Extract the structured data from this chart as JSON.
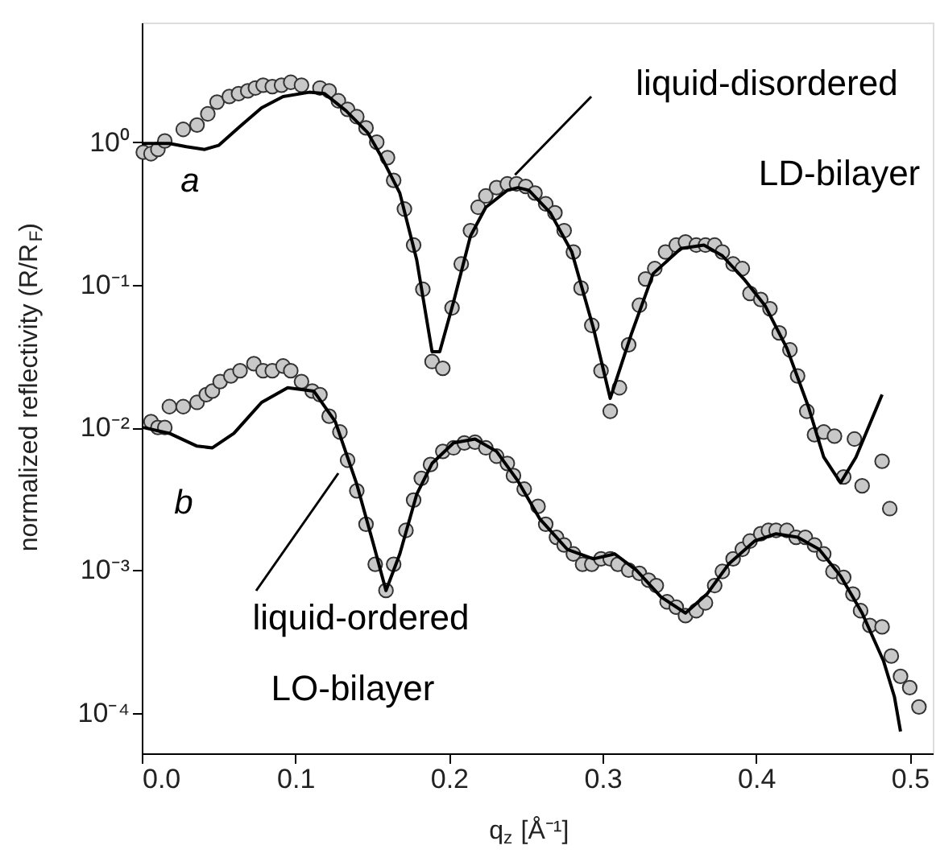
{
  "chart_data": {
    "type": "scatter",
    "xlabel": "q$_{z}$ [Å⁻¹]",
    "ylabel": "normalized reflectivity (R/R$_{F}$)",
    "log": "y",
    "grid": false,
    "marker": "circle",
    "xlim": [
      0,
      0.515
    ],
    "xticks": [
      {
        "value": 0,
        "label": "0.0"
      },
      {
        "value": 0.1,
        "label": "0.1"
      },
      {
        "value": 0.2,
        "label": "0.2"
      },
      {
        "value": 0.3,
        "label": "0.3"
      },
      {
        "value": 0.4,
        "label": "0.4"
      },
      {
        "value": 0.5,
        "label": "0.5"
      }
    ],
    "ylim": [
      5.2e-05,
      6.9
    ],
    "yticks": [
      {
        "value": 0.0001,
        "label": "10⁻⁴"
      },
      {
        "value": 0.001,
        "label": "10⁻³"
      },
      {
        "value": 0.01,
        "label": "10⁻²"
      },
      {
        "value": 0.1,
        "label": "10⁻¹"
      },
      {
        "value": 1,
        "label": "10⁰"
      }
    ],
    "annotations": [
      {
        "text": "liquid-disordered",
        "x": 0.243,
        "y": 0.59
      },
      "LD-bilayer",
      "a",
      "b",
      "liquid-ordered",
      "LO-bilayer"
    ],
    "series": [
      {
        "color": "#c8c8c8",
        "x": [
          0.001,
          0.006,
          0.0105,
          0.015,
          0.027,
          0.036,
          0.043,
          0.049,
          0.057,
          0.063,
          0.069,
          0.074,
          0.079,
          0.085,
          0.091,
          0.097,
          0.104,
          0.116,
          0.122,
          0.128,
          0.134,
          0.14,
          0.146,
          0.153,
          0.16,
          0.164,
          0.171,
          0.177,
          0.183,
          0.189,
          0.196,
          0.202,
          0.208,
          0.214,
          0.219,
          0.224,
          0.231,
          0.238,
          0.244,
          0.25,
          0.256,
          0.263,
          0.269,
          0.275,
          0.281,
          0.286,
          0.293,
          0.299,
          0.305,
          0.311,
          0.317,
          0.324,
          0.328,
          0.334,
          0.341,
          0.348,
          0.354,
          0.361,
          0.367,
          0.373,
          0.378,
          0.385,
          0.391,
          0.396,
          0.403,
          0.409,
          0.415,
          0.422,
          0.427,
          0.433,
          0.438,
          0.444,
          0.451,
          0.457,
          0.464,
          0.469,
          0.482,
          0.487
        ],
        "values": [
          0.85,
          0.83,
          0.89,
          1.02,
          1.23,
          1.32,
          1.58,
          1.91,
          2.09,
          2.19,
          2.29,
          2.4,
          2.51,
          2.45,
          2.51,
          2.63,
          2.51,
          2.4,
          2.29,
          1.95,
          1.7,
          1.51,
          1.26,
          1.0,
          0.78,
          0.54,
          0.34,
          0.19,
          0.093,
          0.029,
          0.026,
          0.069,
          0.14,
          0.24,
          0.35,
          0.42,
          0.48,
          0.51,
          0.51,
          0.49,
          0.44,
          0.37,
          0.32,
          0.24,
          0.17,
          0.095,
          0.052,
          0.025,
          0.013,
          0.019,
          0.038,
          0.072,
          0.11,
          0.13,
          0.17,
          0.19,
          0.2,
          0.19,
          0.19,
          0.19,
          0.17,
          0.14,
          0.13,
          0.087,
          0.079,
          0.068,
          0.046,
          0.035,
          0.023,
          0.013,
          0.0089,
          0.0093,
          0.0087,
          0.0045,
          0.0083,
          0.0039,
          0.0058,
          0.0027
        ]
      },
      {
        "type": "line",
        "marker": "none",
        "line_style": "solid",
        "color": "#000000",
        "x": [
          0,
          0.018,
          0.029,
          0.041,
          0.05,
          0.064,
          0.078,
          0.092,
          0.109,
          0.119,
          0.133,
          0.147,
          0.156,
          0.168,
          0.179,
          0.189,
          0.194,
          0.203,
          0.214,
          0.224,
          0.238,
          0.245,
          0.252,
          0.266,
          0.28,
          0.294,
          0.305,
          0.319,
          0.333,
          0.351,
          0.366,
          0.378,
          0.392,
          0.406,
          0.42,
          0.434,
          0.444,
          0.455,
          0.465,
          0.482
        ],
        "values": [
          0.98,
          0.98,
          0.93,
          0.89,
          0.95,
          1.29,
          1.74,
          2.09,
          2.24,
          2.19,
          1.66,
          1.17,
          0.79,
          0.44,
          0.15,
          0.034,
          0.034,
          0.076,
          0.22,
          0.35,
          0.46,
          0.48,
          0.46,
          0.32,
          0.17,
          0.05,
          0.016,
          0.046,
          0.12,
          0.18,
          0.19,
          0.16,
          0.11,
          0.071,
          0.036,
          0.014,
          0.0062,
          0.0041,
          0.0062,
          0.017
        ]
      },
      {
        "color": "#c8c8c8",
        "x": [
          0.006,
          0.0105,
          0.015,
          0.018,
          0.027,
          0.036,
          0.042,
          0.046,
          0.051,
          0.058,
          0.064,
          0.073,
          0.079,
          0.085,
          0.092,
          0.097,
          0.104,
          0.111,
          0.116,
          0.122,
          0.129,
          0.134,
          0.14,
          0.146,
          0.152,
          0.159,
          0.164,
          0.172,
          0.177,
          0.182,
          0.188,
          0.196,
          0.203,
          0.21,
          0.217,
          0.224,
          0.231,
          0.238,
          0.242,
          0.249,
          0.258,
          0.263,
          0.27,
          0.275,
          0.281,
          0.287,
          0.293,
          0.299,
          0.305,
          0.31,
          0.317,
          0.324,
          0.33,
          0.335,
          0.342,
          0.348,
          0.354,
          0.361,
          0.367,
          0.373,
          0.378,
          0.385,
          0.391,
          0.396,
          0.403,
          0.408,
          0.413,
          0.42,
          0.426,
          0.432,
          0.438,
          0.444,
          0.45,
          0.457,
          0.463,
          0.468,
          0.474,
          0.482,
          0.488,
          0.494,
          0.5,
          0.506
        ],
        "values": [
          0.011,
          0.01,
          0.01,
          0.014,
          0.014,
          0.015,
          0.017,
          0.018,
          0.021,
          0.023,
          0.025,
          0.028,
          0.025,
          0.025,
          0.027,
          0.025,
          0.021,
          0.018,
          0.017,
          0.012,
          0.0093,
          0.0059,
          0.0036,
          0.0021,
          0.0011,
          0.00072,
          0.0011,
          0.0019,
          0.0031,
          0.0044,
          0.0055,
          0.0068,
          0.0072,
          0.0078,
          0.0079,
          0.0072,
          0.0063,
          0.0056,
          0.0046,
          0.0037,
          0.0028,
          0.0021,
          0.0017,
          0.0015,
          0.0013,
          0.0011,
          0.0011,
          0.0012,
          0.0012,
          0.0011,
          0.001,
          0.00095,
          0.00085,
          0.00078,
          0.0006,
          0.00055,
          0.00048,
          0.00052,
          0.00059,
          0.00078,
          0.00098,
          0.0012,
          0.0014,
          0.0016,
          0.0018,
          0.0019,
          0.0019,
          0.0019,
          0.0017,
          0.0017,
          0.0015,
          0.0013,
          0.00098,
          0.00089,
          0.00068,
          0.00052,
          0.00041,
          0.0004,
          0.00025,
          0.00018,
          0.00015,
          0.00011
        ]
      },
      {
        "type": "line",
        "marker": "none",
        "line_style": "solid",
        "color": "#000000",
        "x": [
          0.001,
          0.018,
          0.036,
          0.046,
          0.06,
          0.078,
          0.095,
          0.112,
          0.126,
          0.14,
          0.151,
          0.159,
          0.168,
          0.179,
          0.189,
          0.203,
          0.217,
          0.231,
          0.245,
          0.259,
          0.277,
          0.294,
          0.308,
          0.322,
          0.338,
          0.354,
          0.368,
          0.382,
          0.399,
          0.413,
          0.427,
          0.441,
          0.455,
          0.469,
          0.483,
          0.49,
          0.494
        ],
        "values": [
          0.01,
          0.0091,
          0.0074,
          0.0072,
          0.0091,
          0.015,
          0.019,
          0.018,
          0.011,
          0.004,
          0.0015,
          0.00072,
          0.0013,
          0.0034,
          0.0056,
          0.0078,
          0.0083,
          0.0068,
          0.0042,
          0.0023,
          0.0014,
          0.0012,
          0.0013,
          0.001,
          0.00065,
          0.0005,
          0.00068,
          0.0011,
          0.0016,
          0.0018,
          0.0017,
          0.0014,
          0.00091,
          0.0005,
          0.00023,
          0.00013,
          7.4e-05
        ]
      }
    ]
  }
}
